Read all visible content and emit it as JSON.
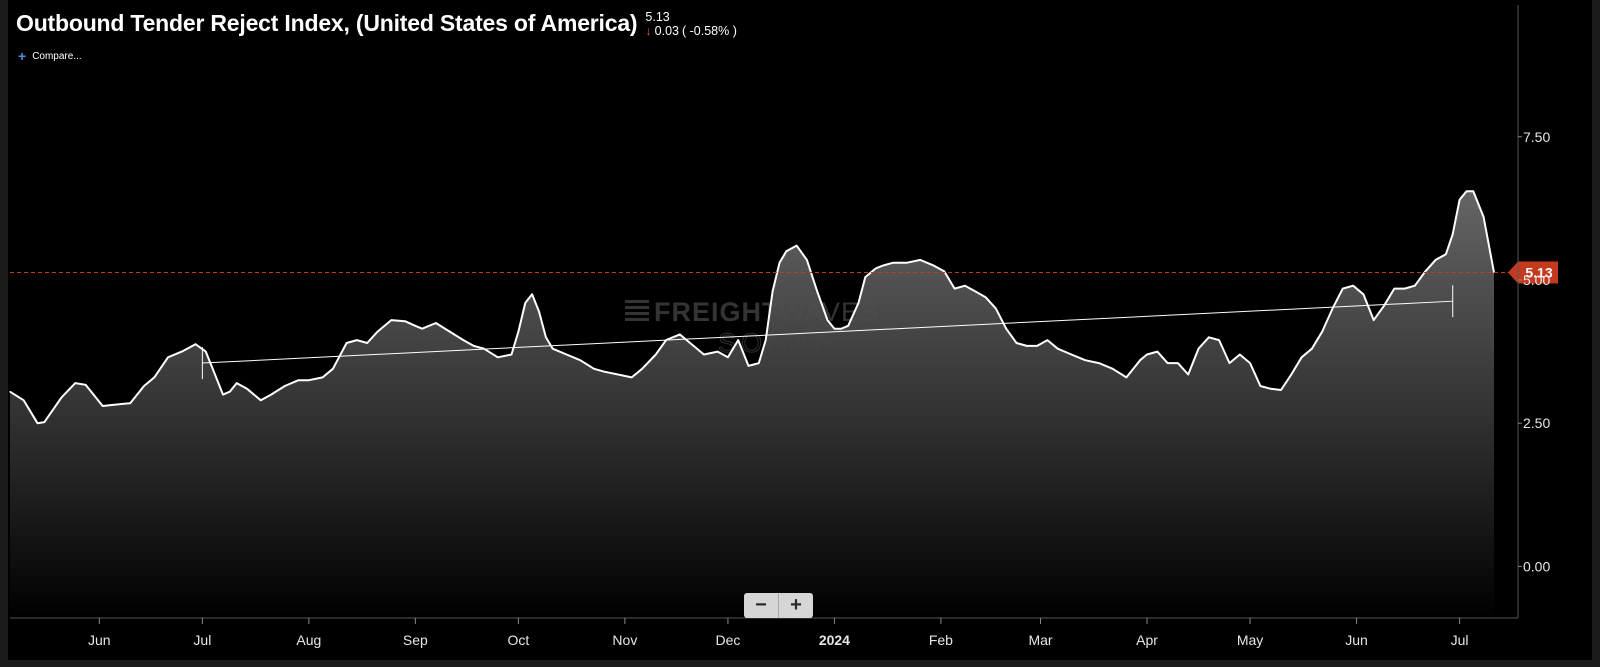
{
  "header": {
    "title": "Outbound Tender Reject Index, (United States of America)",
    "current_value": "5.13",
    "change_value": "0.03",
    "change_pct": "( -0.58% )",
    "change_direction": "down",
    "compare_label": "Compare..."
  },
  "watermark": {
    "line1_bold": "FREIGHT",
    "line1_light": "WAVES",
    "line2": "SONAR"
  },
  "zoom": {
    "minus": "−",
    "plus": "+"
  },
  "colors": {
    "background": "#000000",
    "line": "#ffffff",
    "current_marker": "#c43a1e",
    "trendline": "#ffffff",
    "down_arrow": "#e34b3b"
  },
  "chart_data": {
    "type": "area",
    "title": "Outbound Tender Reject Index, (United States of America)",
    "ylim": [
      -0.9,
      9.8
    ],
    "yticks": [
      0.0,
      2.5,
      5.0,
      7.5
    ],
    "ytick_labels": [
      "0.00",
      "2.50",
      "5.00",
      "7.50"
    ],
    "x_start": "2023-05-06",
    "x_end": "2024-07-18",
    "xtick_labels": [
      {
        "date": "2023-06-01",
        "label": "Jun",
        "bold": false
      },
      {
        "date": "2023-07-01",
        "label": "Jul",
        "bold": false
      },
      {
        "date": "2023-08-01",
        "label": "Aug",
        "bold": false
      },
      {
        "date": "2023-09-01",
        "label": "Sep",
        "bold": false
      },
      {
        "date": "2023-10-01",
        "label": "Oct",
        "bold": false
      },
      {
        "date": "2023-11-01",
        "label": "Nov",
        "bold": false
      },
      {
        "date": "2023-12-01",
        "label": "Dec",
        "bold": false
      },
      {
        "date": "2024-01-01",
        "label": "2024",
        "bold": true
      },
      {
        "date": "2024-02-01",
        "label": "Feb",
        "bold": false
      },
      {
        "date": "2024-03-01",
        "label": "Mar",
        "bold": false
      },
      {
        "date": "2024-04-01",
        "label": "Apr",
        "bold": false
      },
      {
        "date": "2024-05-01",
        "label": "May",
        "bold": false
      },
      {
        "date": "2024-06-01",
        "label": "Jun",
        "bold": false
      },
      {
        "date": "2024-07-01",
        "label": "Jul",
        "bold": false
      }
    ],
    "current_value": 5.13,
    "current_label": "5.13",
    "series": [
      {
        "x": [
          "2023-05-06",
          "2023-05-10",
          "2023-05-14",
          "2023-05-16",
          "2023-05-21",
          "2023-05-25",
          "2023-05-28",
          "2023-06-02",
          "2023-06-05",
          "2023-06-10",
          "2023-06-14",
          "2023-06-17",
          "2023-06-21",
          "2023-06-25",
          "2023-06-29",
          "2023-07-02",
          "2023-07-04",
          "2023-07-07",
          "2023-07-09",
          "2023-07-11",
          "2023-07-14",
          "2023-07-18",
          "2023-07-21",
          "2023-07-25",
          "2023-07-29",
          "2023-08-01",
          "2023-08-05",
          "2023-08-08",
          "2023-08-12",
          "2023-08-15",
          "2023-08-18",
          "2023-08-21",
          "2023-08-25",
          "2023-08-29",
          "2023-09-01",
          "2023-09-03",
          "2023-09-07",
          "2023-09-11",
          "2023-09-15",
          "2023-09-18",
          "2023-09-21",
          "2023-09-25",
          "2023-09-29",
          "2023-10-01",
          "2023-10-03",
          "2023-10-05",
          "2023-10-07",
          "2023-10-09",
          "2023-10-11",
          "2023-10-15",
          "2023-10-19",
          "2023-10-23",
          "2023-10-26",
          "2023-10-30",
          "2023-11-03",
          "2023-11-06",
          "2023-11-10",
          "2023-11-13",
          "2023-11-17",
          "2023-11-20",
          "2023-11-24",
          "2023-11-28",
          "2023-12-01",
          "2023-12-04",
          "2023-12-07",
          "2023-12-10",
          "2023-12-12",
          "2023-12-14",
          "2023-12-16",
          "2023-12-18",
          "2023-12-21",
          "2023-12-24",
          "2023-12-27",
          "2023-12-30",
          "2024-01-01",
          "2024-01-03",
          "2024-01-05",
          "2024-01-08",
          "2024-01-10",
          "2024-01-13",
          "2024-01-15",
          "2024-01-18",
          "2024-01-22",
          "2024-01-26",
          "2024-01-30",
          "2024-02-02",
          "2024-02-05",
          "2024-02-08",
          "2024-02-11",
          "2024-02-14",
          "2024-02-17",
          "2024-02-20",
          "2024-02-23",
          "2024-02-26",
          "2024-02-29",
          "2024-03-03",
          "2024-03-06",
          "2024-03-10",
          "2024-03-14",
          "2024-03-18",
          "2024-03-22",
          "2024-03-26",
          "2024-03-30",
          "2024-04-01",
          "2024-04-04",
          "2024-04-07",
          "2024-04-10",
          "2024-04-13",
          "2024-04-16",
          "2024-04-19",
          "2024-04-22",
          "2024-04-25",
          "2024-04-28",
          "2024-05-01",
          "2024-05-04",
          "2024-05-07",
          "2024-05-10",
          "2024-05-13",
          "2024-05-16",
          "2024-05-19",
          "2024-05-22",
          "2024-05-25",
          "2024-05-28",
          "2024-05-31",
          "2024-06-03",
          "2024-06-06",
          "2024-06-09",
          "2024-06-12",
          "2024-06-15",
          "2024-06-18",
          "2024-06-21",
          "2024-06-24",
          "2024-06-27",
          "2024-06-29",
          "2024-07-01",
          "2024-07-03",
          "2024-07-05",
          "2024-07-08",
          "2024-07-11"
        ],
        "y": [
          3.05,
          2.9,
          2.5,
          2.52,
          2.95,
          3.2,
          3.17,
          2.8,
          2.82,
          2.85,
          3.15,
          3.3,
          3.65,
          3.75,
          3.88,
          3.75,
          3.45,
          3.0,
          3.05,
          3.2,
          3.1,
          2.9,
          3.0,
          3.15,
          3.25,
          3.25,
          3.3,
          3.45,
          3.9,
          3.95,
          3.9,
          4.1,
          4.3,
          4.28,
          4.2,
          4.15,
          4.25,
          4.1,
          3.95,
          3.85,
          3.8,
          3.65,
          3.7,
          4.1,
          4.6,
          4.75,
          4.45,
          4.0,
          3.8,
          3.7,
          3.6,
          3.45,
          3.4,
          3.35,
          3.3,
          3.45,
          3.7,
          3.95,
          4.05,
          3.9,
          3.7,
          3.75,
          3.65,
          3.95,
          3.5,
          3.55,
          3.95,
          4.8,
          5.3,
          5.5,
          5.6,
          5.35,
          4.8,
          4.3,
          4.15,
          4.15,
          4.2,
          4.6,
          5.05,
          5.2,
          5.25,
          5.3,
          5.3,
          5.35,
          5.25,
          5.15,
          4.85,
          4.9,
          4.8,
          4.7,
          4.5,
          4.15,
          3.9,
          3.85,
          3.85,
          3.95,
          3.8,
          3.7,
          3.6,
          3.55,
          3.45,
          3.3,
          3.6,
          3.7,
          3.75,
          3.55,
          3.55,
          3.35,
          3.8,
          4.0,
          3.95,
          3.55,
          3.7,
          3.55,
          3.15,
          3.1,
          3.08,
          3.35,
          3.65,
          3.8,
          4.1,
          4.5,
          4.85,
          4.9,
          4.75,
          4.3,
          4.55,
          4.85,
          4.85,
          4.9,
          5.15,
          5.35,
          5.45,
          5.8,
          6.4,
          6.55,
          6.55,
          6.1,
          5.13
        ]
      }
    ],
    "trendline": {
      "x": [
        "2023-07-01",
        "2024-06-29"
      ],
      "y": [
        3.55,
        4.63
      ]
    },
    "grid": false,
    "legend": "none"
  }
}
